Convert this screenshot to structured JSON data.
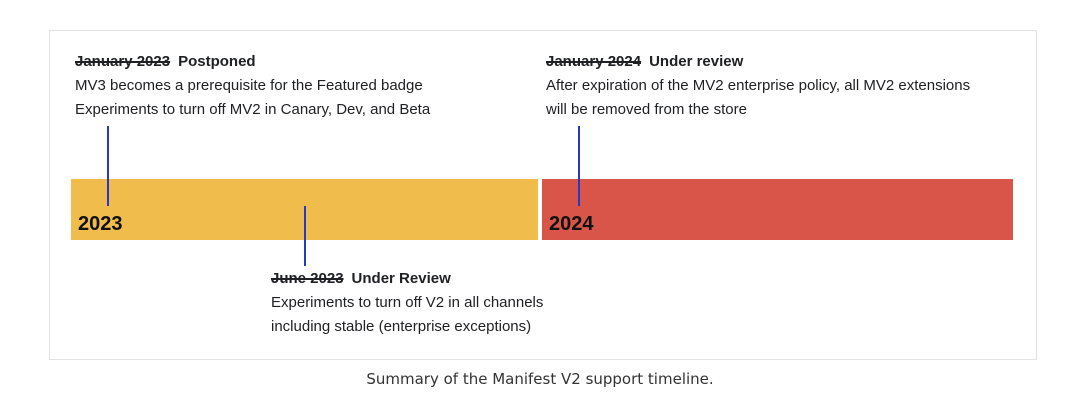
{
  "timeline": {
    "bars": [
      {
        "year": "2023",
        "color": "#f0bd4d"
      },
      {
        "year": "2024",
        "color": "#d95449"
      }
    ],
    "marker_color": "#2538c9",
    "milestones": [
      {
        "date": "January 2023",
        "status": "Postponed",
        "lines": [
          "MV3 becomes a prerequisite for the Featured badge",
          "Experiments to turn off MV2 in Canary, Dev, and Beta"
        ]
      },
      {
        "date": "June 2023",
        "status": "Under Review",
        "lines": [
          "Experiments to turn off V2 in all channels",
          "including stable (enterprise exceptions)"
        ]
      },
      {
        "date": "January 2024",
        "status": "Under review",
        "lines": [
          "After expiration of the MV2 enterprise policy, all MV2 extensions",
          "will be removed from the store"
        ]
      }
    ]
  },
  "caption": "Summary of the Manifest V2 support timeline."
}
